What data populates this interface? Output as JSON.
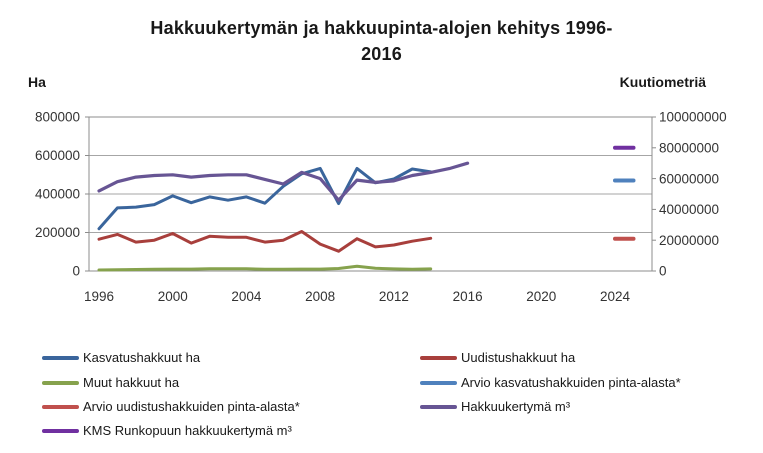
{
  "chart_data": {
    "type": "line",
    "title": "Hakkuukertymän ja hakkuupinta-alojen kehitys 1996-2016",
    "title_lines": [
      "Hakkuukertymän ja hakkuupinta-alojen kehitys 1996-",
      "2016"
    ],
    "left_axis": {
      "label": "Ha",
      "min": 0,
      "max": 800000,
      "ticks": [
        0,
        200000,
        400000,
        600000,
        800000
      ]
    },
    "right_axis": {
      "label": "Kuutiometriä",
      "min": 0,
      "max": 100000000,
      "ticks": [
        0,
        20000000,
        40000000,
        60000000,
        80000000,
        100000000
      ]
    },
    "x_axis": {
      "ticks": [
        1996,
        2000,
        2004,
        2008,
        2012,
        2016,
        2020,
        2024
      ],
      "range": [
        1995.5,
        2026
      ]
    },
    "grid": true,
    "legend_position": "bottom",
    "series": [
      {
        "id": "kasvatushakkuut-ha",
        "name": "Kasvatushakkuut ha",
        "axis": "left",
        "color": "#3A659C",
        "width": 3,
        "years": [
          1996,
          1997,
          1998,
          1999,
          2000,
          2001,
          2002,
          2003,
          2004,
          2005,
          2006,
          2007,
          2008,
          2009,
          2010,
          2011,
          2012,
          2013,
          2014
        ],
        "values": [
          220000,
          328000,
          332000,
          345000,
          390000,
          355000,
          385000,
          368000,
          385000,
          352000,
          440000,
          505000,
          533000,
          350000,
          533000,
          458000,
          478000,
          530000,
          515000
        ]
      },
      {
        "id": "uudistushakkuut-ha",
        "name": "Uudistushakkuut ha",
        "axis": "left",
        "color": "#A83F3C",
        "width": 3,
        "years": [
          1996,
          1997,
          1998,
          1999,
          2000,
          2001,
          2002,
          2003,
          2004,
          2005,
          2006,
          2007,
          2008,
          2009,
          2010,
          2011,
          2012,
          2013,
          2014
        ],
        "values": [
          165000,
          190000,
          150000,
          160000,
          195000,
          145000,
          180000,
          175000,
          175000,
          150000,
          160000,
          205000,
          140000,
          103000,
          168000,
          125000,
          135000,
          155000,
          170000
        ]
      },
      {
        "id": "muut-hakkuut-ha",
        "name": "Muut hakkuut ha",
        "axis": "left",
        "color": "#86A24D",
        "width": 3,
        "years": [
          1996,
          1997,
          1998,
          1999,
          2000,
          2001,
          2002,
          2003,
          2004,
          2005,
          2006,
          2007,
          2008,
          2009,
          2010,
          2011,
          2012,
          2013,
          2014
        ],
        "values": [
          5000,
          7000,
          8000,
          9000,
          10000,
          10000,
          12000,
          12000,
          12000,
          9000,
          9000,
          10000,
          10000,
          13000,
          25000,
          14000,
          11000,
          9000,
          11000
        ]
      },
      {
        "id": "arvio-kasvatushakkuiden-pinta-alasta",
        "name": "Arvio kasvatushakkuiden pinta-alasta*",
        "axis": "left",
        "color": "#4F81BD",
        "width": 4,
        "years": [
          2024,
          2025
        ],
        "values": [
          470000,
          470000
        ]
      },
      {
        "id": "arvio-uudistushakkuiden-pinta-alasta",
        "name": "Arvio uudistushakkuiden pinta-alasta*",
        "axis": "left",
        "color": "#C0504D",
        "width": 4,
        "years": [
          2024,
          2025
        ],
        "values": [
          168000,
          168000
        ]
      },
      {
        "id": "hakkuukertyma-m3",
        "name": "Hakkuukertymä m³",
        "axis": "right",
        "color": "#675594",
        "width": 3.2,
        "years": [
          1996,
          1997,
          1998,
          1999,
          2000,
          2001,
          2002,
          2003,
          2004,
          2005,
          2006,
          2007,
          2008,
          2009,
          2010,
          2011,
          2012,
          2013,
          2014,
          2015,
          2016
        ],
        "values": [
          52000000,
          58000000,
          61000000,
          62000000,
          62500000,
          61000000,
          62000000,
          62500000,
          62500000,
          59500000,
          56500000,
          64000000,
          60000000,
          46000000,
          59000000,
          57500000,
          58500000,
          62000000,
          64000000,
          66500000,
          70000000
        ]
      },
      {
        "id": "kms-runkopuun-hakkuukertyma-m3",
        "name": "KMS Runkopuun hakkuukertymä m³",
        "axis": "right",
        "color": "#7030A0",
        "width": 4,
        "years": [
          2024,
          2025
        ],
        "values": [
          80000000,
          80000000
        ]
      }
    ]
  }
}
